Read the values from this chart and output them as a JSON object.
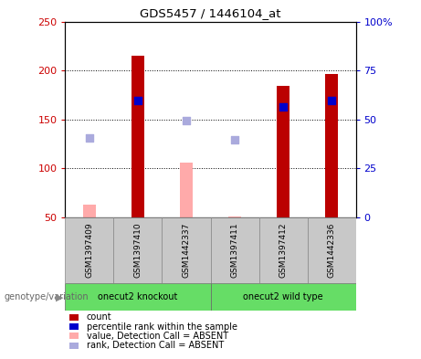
{
  "title": "GDS5457 / 1446104_at",
  "samples": [
    "GSM1397409",
    "GSM1397410",
    "GSM1442337",
    "GSM1397411",
    "GSM1397412",
    "GSM1442336"
  ],
  "groups": [
    {
      "name": "onecut2 knockout",
      "color": "#90EE90",
      "indices": [
        0,
        1,
        2
      ]
    },
    {
      "name": "onecut2 wild type",
      "color": "#90EE90",
      "indices": [
        3,
        4,
        5
      ]
    }
  ],
  "count_values": [
    null,
    215,
    null,
    null,
    184,
    196
  ],
  "count_color": "#BB0000",
  "count_absent_values": [
    63,
    null,
    106,
    51,
    null,
    null
  ],
  "count_absent_color": "#FFAAAA",
  "rank_values": [
    null,
    169,
    null,
    null,
    163,
    169
  ],
  "rank_color": "#0000CC",
  "rank_absent_values": [
    131,
    null,
    149,
    129,
    null,
    null
  ],
  "rank_absent_color": "#AAAADD",
  "ylim_left": [
    50,
    250
  ],
  "ylim_right": [
    0,
    100
  ],
  "yticks_left": [
    50,
    100,
    150,
    200,
    250
  ],
  "yticks_left_labels": [
    "50",
    "100",
    "150",
    "200",
    "250"
  ],
  "yticks_right": [
    0,
    25,
    50,
    75,
    100
  ],
  "yticks_right_labels": [
    "0",
    "25",
    "50",
    "75",
    "100%"
  ],
  "hlines": [
    100,
    150,
    200
  ],
  "bar_width": 0.25,
  "rank_marker_size": 35,
  "rank_absent_marker_size": 30,
  "left_tick_color": "#CC0000",
  "right_tick_color": "#0000CC",
  "legend_items": [
    {
      "label": "count",
      "color": "#BB0000"
    },
    {
      "label": "percentile rank within the sample",
      "color": "#0000CC"
    },
    {
      "label": "value, Detection Call = ABSENT",
      "color": "#FFAAAA"
    },
    {
      "label": "rank, Detection Call = ABSENT",
      "color": "#AAAADD"
    }
  ],
  "group_label_prefix": "genotype/variation",
  "bg_color": "#C8C8C8",
  "group_green": "#66DD66"
}
